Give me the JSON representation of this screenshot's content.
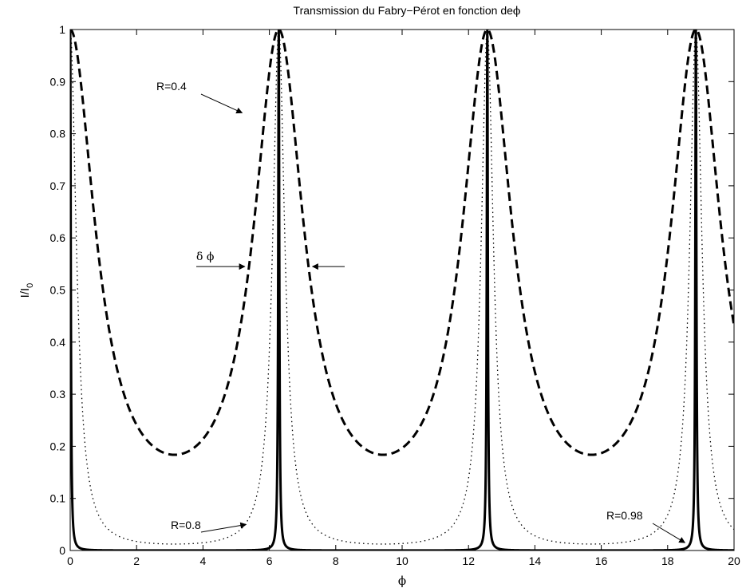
{
  "chart_data": {
    "type": "line",
    "title_prefix": "Transmission du Fabry−Pérot en fonction de",
    "title_symbol": "ϕ",
    "xlabel": "ϕ",
    "ylabel_main": "I/I",
    "ylabel_sub": "0",
    "xlim": [
      0,
      20
    ],
    "ylim": [
      0,
      1
    ],
    "xticks": [
      0,
      2,
      4,
      6,
      8,
      10,
      12,
      14,
      16,
      18,
      20
    ],
    "yticks": [
      0,
      0.1,
      0.2,
      0.3,
      0.4,
      0.5,
      0.6,
      0.7,
      0.8,
      0.9,
      1
    ],
    "xtick_labels": [
      "0",
      "2",
      "4",
      "6",
      "8",
      "10",
      "12",
      "14",
      "16",
      "18",
      "20"
    ],
    "ytick_labels": [
      "0",
      "0.1",
      "0.2",
      "0.3",
      "0.4",
      "0.5",
      "0.6",
      "0.7",
      "0.8",
      "0.9",
      "1"
    ],
    "grid": false,
    "series": [
      {
        "reflectance": 0.4,
        "style": "dashed",
        "formula": "1/(1+F*sin^2(phi/2)), F=4R/(1-R)^2",
        "x_range": [
          0,
          20
        ],
        "minimum_at": [
          3.14159,
          9.42478,
          15.70796
        ],
        "min_value": 0.184,
        "max_value": 1.0
      },
      {
        "reflectance": 0.8,
        "style": "dotted",
        "formula": "1/(1+F*sin^2(phi/2)), F=4R/(1-R)^2",
        "x_range": [
          0,
          20
        ],
        "min_value": 0.012,
        "max_value": 1.0
      },
      {
        "reflectance": 0.98,
        "style": "solid",
        "formula": "1/(1+F*sin^2(phi/2)), F=4R/(1-R)^2",
        "x_range": [
          0,
          20
        ],
        "peaks_at": [
          0,
          6.28319,
          12.56637,
          18.84956
        ],
        "min_value": 0.0001,
        "max_value": 1.0
      }
    ],
    "annotations": [
      {
        "text": "R=0.4",
        "target": [
          5.18,
          0.84
        ]
      },
      {
        "text": "R=0.8",
        "target": [
          5.3,
          0.05
        ]
      },
      {
        "text": "R=0.98",
        "target": [
          18.52,
          0.015
        ]
      },
      {
        "text": "δ ϕ",
        "spans_x": [
          5.26,
          7.3
        ],
        "y": 0.545
      }
    ],
    "colors": {
      "line": "#000000",
      "background": "#ffffff"
    }
  }
}
